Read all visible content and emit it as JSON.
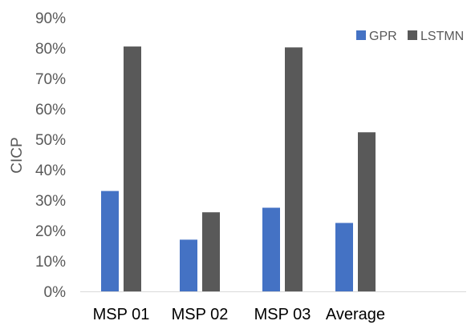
{
  "chart_data": {
    "type": "bar",
    "title": "",
    "xlabel": "",
    "ylabel": "CICP",
    "categories": [
      "MSP 01",
      "MSP 02",
      "MSP 03",
      "Average"
    ],
    "series": [
      {
        "name": "GPR",
        "color": "#4472C4",
        "values": [
          33,
          17,
          27.5,
          22.5
        ]
      },
      {
        "name": "LSTMN",
        "color": "#595959",
        "values": [
          80.5,
          26,
          80.2,
          52.3
        ]
      }
    ],
    "ylim": [
      0,
      90
    ],
    "yticks": [
      {
        "value": 0,
        "label": "0%"
      },
      {
        "value": 10,
        "label": "10%"
      },
      {
        "value": 20,
        "label": "20%"
      },
      {
        "value": 30,
        "label": "30%"
      },
      {
        "value": 40,
        "label": "40%"
      },
      {
        "value": 50,
        "label": "50%"
      },
      {
        "value": 60,
        "label": "60%"
      },
      {
        "value": 70,
        "label": "70%"
      },
      {
        "value": 80,
        "label": "80%"
      },
      {
        "value": 90,
        "label": "90%"
      }
    ],
    "grid": false,
    "legend_position": "top-right",
    "axis_color": "#d9d9d9",
    "tick_label_color": "#595959",
    "category_label_color": "#000000"
  }
}
